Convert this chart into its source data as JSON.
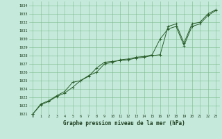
{
  "title": "Graphe pression niveau de la mer (hPa)",
  "x_values": [
    0,
    1,
    2,
    3,
    4,
    5,
    6,
    7,
    8,
    9,
    10,
    11,
    12,
    13,
    14,
    15,
    16,
    17,
    18,
    19,
    20,
    21,
    22,
    23
  ],
  "line1": [
    1021.0,
    1022.1,
    1022.5,
    1023.1,
    1023.5,
    1024.2,
    1025.0,
    1025.5,
    1026.5,
    1027.2,
    1027.3,
    1027.4,
    1027.5,
    1027.7,
    1027.8,
    1028.0,
    1028.1,
    1031.5,
    1031.8,
    1029.5,
    1031.8,
    1032.0,
    1033.0,
    1033.5
  ],
  "line2": [
    1021.0,
    1022.2,
    1022.6,
    1023.2,
    1023.7,
    1024.8,
    1025.0,
    1025.6,
    1026.0,
    1027.0,
    1027.2,
    1027.5,
    1027.6,
    1027.8,
    1027.9,
    1028.1,
    1030.0,
    1031.2,
    1031.5,
    1029.2,
    1031.5,
    1031.8,
    1032.8,
    1033.4
  ],
  "bg_color": "#c5eadc",
  "grid_color": "#7dba8a",
  "line_color": "#2a5e2a",
  "marker_color": "#2a5e2a",
  "label_color": "#1a3a1a",
  "ylim_min": 1021,
  "ylim_max": 1034,
  "xlim_min": -0.5,
  "xlim_max": 23.5
}
